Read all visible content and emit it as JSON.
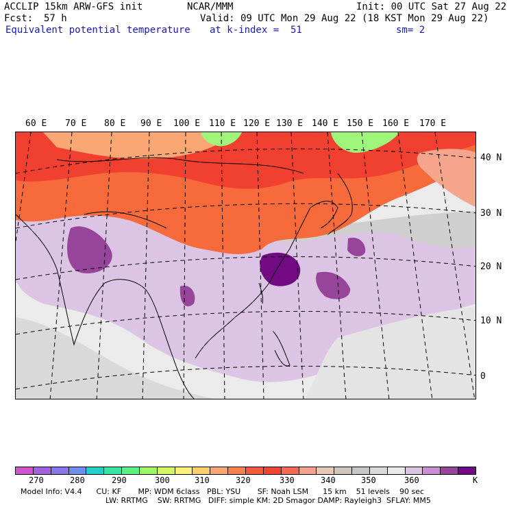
{
  "header": {
    "model": "ACCLIP 15km ARW-GFS init",
    "center": "NCAR/MMM",
    "init": "Init: 00 UTC Sat 27 Aug 22",
    "fcst_label": "Fcst:",
    "fcst_value": "57 h",
    "valid": "Valid: 09 UTC Mon 29 Aug 22 (18 KST Mon 29 Aug 22)",
    "field": "Equivalent potential temperature",
    "level": "at k-index =  51",
    "smooth": "sm= 2"
  },
  "map": {
    "lon_labels": [
      "60 E",
      "70 E",
      "80 E",
      "90 E",
      "100 E",
      "110 E",
      "120 E",
      "130 E",
      "140 E",
      "150 E",
      "160 E",
      "170 E"
    ],
    "lat_labels": [
      "40 N",
      "30 N",
      "20 N",
      "10 N",
      "0"
    ],
    "colors": {
      "background": "#ebebeb",
      "low_purple": "#dcc4e4",
      "mid_purple": "#96459a",
      "high_purple": "#720a84",
      "warm_orange": "#f76a3b",
      "warm_red": "#f24030",
      "light_orange": "#fba773",
      "yellow_green": "#9ef57a",
      "salmon": "#f4a58c",
      "grey": "#bdbdbd"
    }
  },
  "colorbar": {
    "colors": [
      "#cf54cf",
      "#a461dc",
      "#8b77e4",
      "#6f8ff0",
      "#22cfc8",
      "#39e3a2",
      "#5cf283",
      "#9df766",
      "#d5f760",
      "#fcf07a",
      "#fccf6c",
      "#fba773",
      "#f78250",
      "#f25b3c",
      "#ef4433",
      "#f46a52",
      "#f5a38c",
      "#e8c9b7",
      "#cfc5bc",
      "#c7c7c7",
      "#d9d9d9",
      "#eaeaea",
      "#dcc4e4",
      "#c98fd0",
      "#96459a",
      "#720a84"
    ],
    "ticks": [
      "270",
      "280",
      "290",
      "300",
      "310",
      "320",
      "330",
      "340",
      "350",
      "360"
    ],
    "unit": "K"
  },
  "footer": {
    "line1": "Model Info: V4.4      CU: KF       MP: WDM 6class   PBL: YSU       SF: Noah LSM      15 km    51 levels    90 sec",
    "line2": "LW: RRTMG    SW: RRTMG   DIFF: simple KM: 2D Smagor DAMP: Rayleigh3  SFLAY: MM5"
  }
}
